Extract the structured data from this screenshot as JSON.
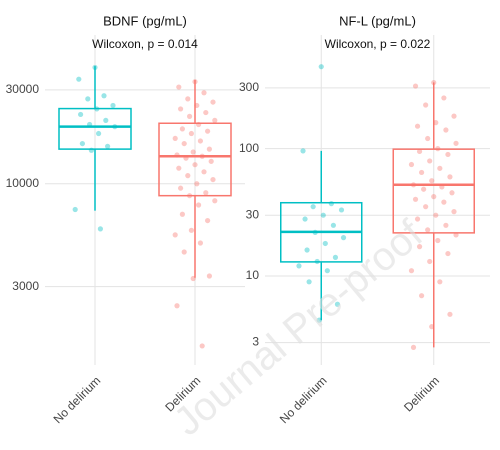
{
  "watermark": "Journal Pre-proof",
  "chart_data": [
    {
      "type": "box",
      "title": "BDNF (pg/mL)",
      "subtitle": "Wilcoxon, p = 0.014",
      "categories": [
        "No delirium",
        "Delirium"
      ],
      "colors": [
        "#00BFC4",
        "#F8766D"
      ],
      "yscale": "log",
      "ylim": [
        1200,
        57000
      ],
      "yticks": [
        3000,
        10000,
        30000
      ],
      "grid": true,
      "boxes": [
        {
          "whisker_low": 7300,
          "q1": 15000,
          "median": 19500,
          "q3": 24100,
          "whisker_high": 39600,
          "points": [
            39000,
            34000,
            28000,
            27000,
            25000,
            24000,
            22500,
            21000,
            20000,
            19500,
            18000,
            16000,
            15500,
            14800,
            7400,
            5900
          ]
        },
        {
          "whisker_low": 3330,
          "q1": 8700,
          "median": 13800,
          "q3": 20300,
          "whisker_high": 33700,
          "points": [
            33000,
            31000,
            29000,
            27000,
            26000,
            25000,
            24000,
            23000,
            22000,
            21000,
            20000,
            19000,
            18500,
            18000,
            17000,
            16500,
            16000,
            15000,
            14500,
            14000,
            13800,
            13500,
            13000,
            12500,
            12000,
            11500,
            11000,
            10500,
            10000,
            9500,
            9000,
            8700,
            8200,
            7800,
            7000,
            6500,
            5800,
            5500,
            5000,
            4500,
            3400,
            3300,
            2400,
            1500
          ]
        }
      ]
    },
    {
      "type": "box",
      "title": "NF-L (pg/mL)",
      "subtitle": "Wilcoxon, p = 0.022",
      "categories": [
        "No delirium",
        "Delirium"
      ],
      "colors": [
        "#00BFC4",
        "#F8766D"
      ],
      "yscale": "log",
      "ylim": [
        2,
        780
      ],
      "yticks": [
        3,
        10,
        30,
        100,
        300
      ],
      "grid": true,
      "boxes": [
        {
          "whisker_low": 4.5,
          "q1": 12.9,
          "median": 22.2,
          "q3": 37.6,
          "whisker_high": 96,
          "points": [
            440,
            96,
            37,
            35,
            33,
            30,
            28,
            25,
            22,
            20,
            18,
            16,
            14,
            13,
            12,
            11,
            9,
            6,
            4.5
          ]
        },
        {
          "whisker_low": 2.75,
          "q1": 21.8,
          "median": 52,
          "q3": 99,
          "whisker_high": 331,
          "points": [
            330,
            310,
            250,
            220,
            180,
            160,
            150,
            140,
            120,
            110,
            100,
            95,
            90,
            80,
            75,
            70,
            65,
            60,
            56,
            52,
            50,
            48,
            45,
            42,
            40,
            38,
            35,
            32,
            30,
            28,
            25,
            23,
            21,
            19,
            17,
            15,
            13,
            11,
            9,
            7,
            5,
            4,
            2.75
          ]
        }
      ]
    }
  ]
}
